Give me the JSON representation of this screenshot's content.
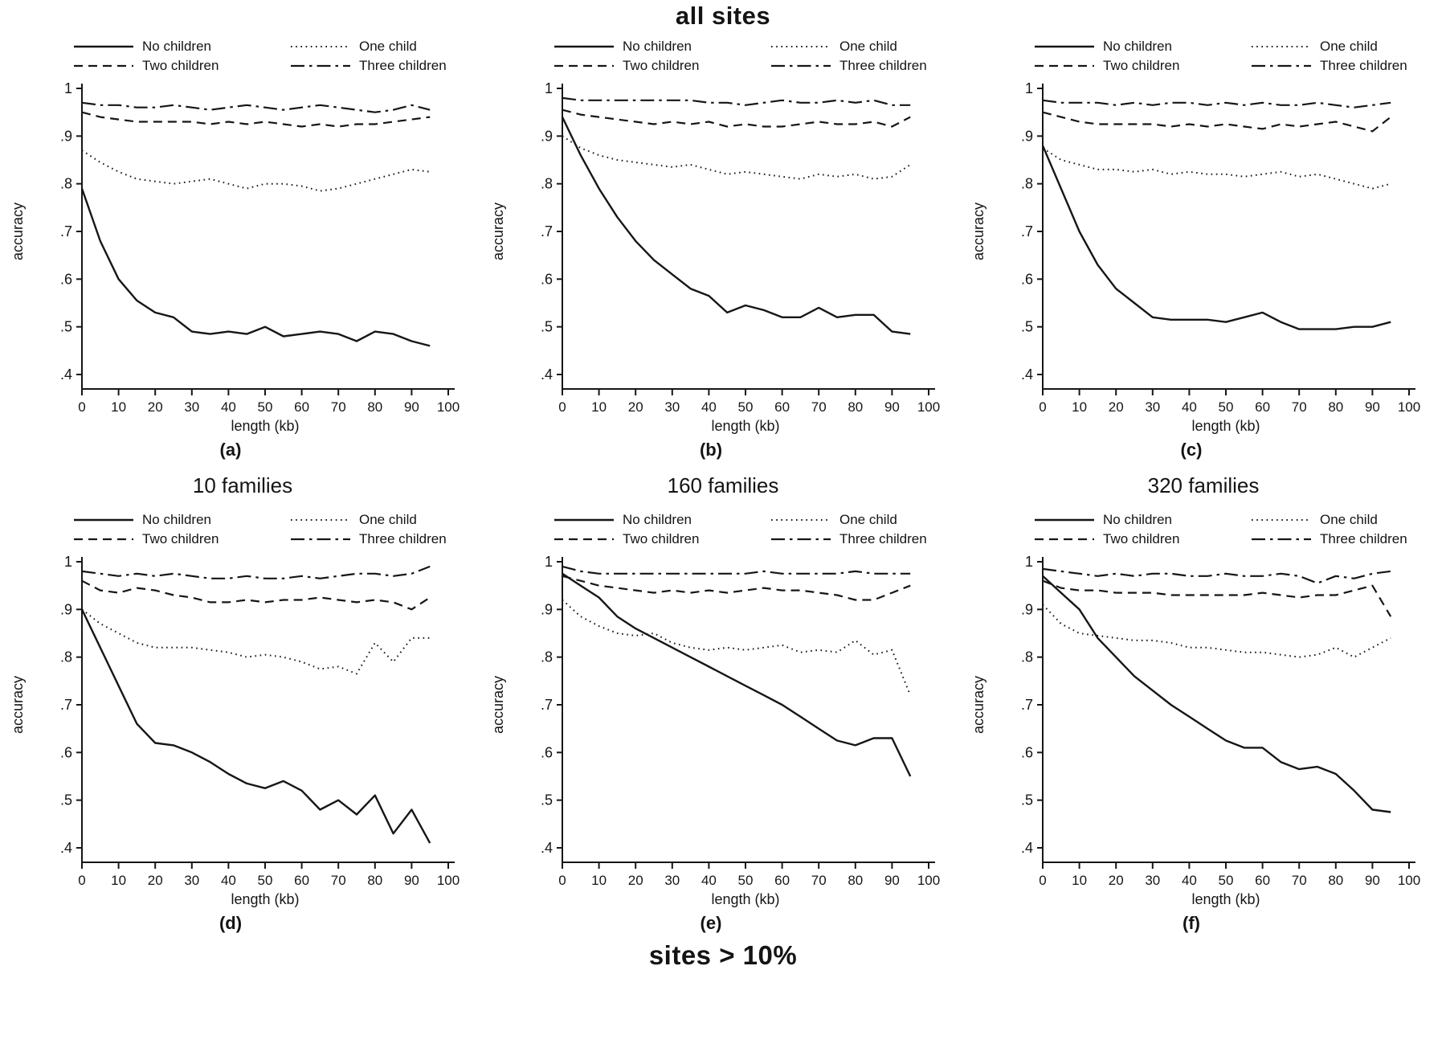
{
  "figure": {
    "top_title": "all sites",
    "bottom_title": "sites > 10%"
  },
  "column_labels": [
    "10 families",
    "160 families",
    "320 families"
  ],
  "legend": {
    "items": [
      {
        "label": "No children",
        "style": "solid"
      },
      {
        "label": "One child",
        "style": "dotted"
      },
      {
        "label": "Two children",
        "style": "dashed"
      },
      {
        "label": "Three children",
        "style": "dashdot"
      }
    ]
  },
  "axes": {
    "xlabel": "length (kb)",
    "ylabel": "accuracy",
    "xlim": [
      0,
      100
    ],
    "ylim": [
      0.4,
      1.0
    ],
    "xticks": [
      0,
      10,
      20,
      30,
      40,
      50,
      60,
      70,
      80,
      90,
      100
    ],
    "ytick_labels": [
      "1",
      ".9",
      ".8",
      ".7",
      ".6",
      ".5",
      ".4"
    ],
    "yticks": [
      1.0,
      0.9,
      0.8,
      0.7,
      0.6,
      0.5,
      0.4
    ],
    "grid": false,
    "legend_position": "above plot, two columns"
  },
  "chart_data": [
    {
      "id": "a",
      "caption": "(a)",
      "type": "line",
      "group": "all sites",
      "families": "10 families",
      "x": [
        0,
        5,
        10,
        15,
        20,
        25,
        30,
        35,
        40,
        45,
        50,
        55,
        60,
        65,
        70,
        75,
        80,
        85,
        90,
        95
      ],
      "series": [
        {
          "name": "No children",
          "style": "solid",
          "values": [
            0.79,
            0.68,
            0.6,
            0.555,
            0.53,
            0.52,
            0.49,
            0.485,
            0.49,
            0.485,
            0.5,
            0.48,
            0.485,
            0.49,
            0.485,
            0.47,
            0.49,
            0.485,
            0.47,
            0.46
          ]
        },
        {
          "name": "One child",
          "style": "dotted",
          "values": [
            0.87,
            0.845,
            0.825,
            0.81,
            0.805,
            0.8,
            0.805,
            0.81,
            0.8,
            0.79,
            0.8,
            0.8,
            0.795,
            0.785,
            0.79,
            0.8,
            0.81,
            0.82,
            0.83,
            0.825
          ]
        },
        {
          "name": "Two children",
          "style": "dashed",
          "values": [
            0.95,
            0.94,
            0.935,
            0.93,
            0.93,
            0.93,
            0.93,
            0.925,
            0.93,
            0.925,
            0.93,
            0.925,
            0.92,
            0.925,
            0.92,
            0.925,
            0.925,
            0.93,
            0.935,
            0.94
          ]
        },
        {
          "name": "Three children",
          "style": "dashdot",
          "values": [
            0.97,
            0.965,
            0.965,
            0.96,
            0.96,
            0.965,
            0.96,
            0.955,
            0.96,
            0.965,
            0.96,
            0.955,
            0.96,
            0.965,
            0.96,
            0.955,
            0.95,
            0.955,
            0.965,
            0.955
          ]
        }
      ]
    },
    {
      "id": "b",
      "caption": "(b)",
      "type": "line",
      "group": "all sites",
      "families": "160 families",
      "x": [
        0,
        5,
        10,
        15,
        20,
        25,
        30,
        35,
        40,
        45,
        50,
        55,
        60,
        65,
        70,
        75,
        80,
        85,
        90,
        95
      ],
      "series": [
        {
          "name": "No children",
          "style": "solid",
          "values": [
            0.94,
            0.86,
            0.79,
            0.73,
            0.68,
            0.64,
            0.61,
            0.58,
            0.565,
            0.53,
            0.545,
            0.535,
            0.52,
            0.52,
            0.54,
            0.52,
            0.525,
            0.525,
            0.49,
            0.485
          ]
        },
        {
          "name": "One child",
          "style": "dotted",
          "values": [
            0.9,
            0.875,
            0.86,
            0.85,
            0.845,
            0.84,
            0.835,
            0.84,
            0.83,
            0.82,
            0.825,
            0.82,
            0.815,
            0.81,
            0.82,
            0.815,
            0.82,
            0.81,
            0.815,
            0.84
          ]
        },
        {
          "name": "Two children",
          "style": "dashed",
          "values": [
            0.955,
            0.945,
            0.94,
            0.935,
            0.93,
            0.925,
            0.93,
            0.925,
            0.93,
            0.92,
            0.925,
            0.92,
            0.92,
            0.925,
            0.93,
            0.925,
            0.925,
            0.93,
            0.92,
            0.94
          ]
        },
        {
          "name": "Three children",
          "style": "dashdot",
          "values": [
            0.98,
            0.975,
            0.975,
            0.975,
            0.975,
            0.975,
            0.975,
            0.975,
            0.97,
            0.97,
            0.965,
            0.97,
            0.975,
            0.97,
            0.97,
            0.975,
            0.97,
            0.975,
            0.965,
            0.965
          ]
        }
      ]
    },
    {
      "id": "c",
      "caption": "(c)",
      "type": "line",
      "group": "all sites",
      "families": "320 families",
      "x": [
        0,
        5,
        10,
        15,
        20,
        25,
        30,
        35,
        40,
        45,
        50,
        55,
        60,
        65,
        70,
        75,
        80,
        85,
        90,
        95
      ],
      "series": [
        {
          "name": "No children",
          "style": "solid",
          "values": [
            0.88,
            0.79,
            0.7,
            0.63,
            0.58,
            0.55,
            0.52,
            0.515,
            0.515,
            0.515,
            0.51,
            0.52,
            0.53,
            0.51,
            0.495,
            0.495,
            0.495,
            0.5,
            0.5,
            0.51
          ]
        },
        {
          "name": "One child",
          "style": "dotted",
          "values": [
            0.875,
            0.85,
            0.84,
            0.83,
            0.83,
            0.825,
            0.83,
            0.82,
            0.825,
            0.82,
            0.82,
            0.815,
            0.82,
            0.825,
            0.815,
            0.82,
            0.81,
            0.8,
            0.79,
            0.8
          ]
        },
        {
          "name": "Two children",
          "style": "dashed",
          "values": [
            0.95,
            0.94,
            0.93,
            0.925,
            0.925,
            0.925,
            0.925,
            0.92,
            0.925,
            0.92,
            0.925,
            0.92,
            0.915,
            0.925,
            0.92,
            0.925,
            0.93,
            0.92,
            0.91,
            0.94
          ]
        },
        {
          "name": "Three children",
          "style": "dashdot",
          "values": [
            0.975,
            0.97,
            0.97,
            0.97,
            0.965,
            0.97,
            0.965,
            0.97,
            0.97,
            0.965,
            0.97,
            0.965,
            0.97,
            0.965,
            0.965,
            0.97,
            0.965,
            0.96,
            0.965,
            0.97
          ]
        }
      ]
    },
    {
      "id": "d",
      "caption": "(d)",
      "type": "line",
      "group": "sites > 10%",
      "families": "10 families",
      "x": [
        0,
        5,
        10,
        15,
        20,
        25,
        30,
        35,
        40,
        45,
        50,
        55,
        60,
        65,
        70,
        75,
        80,
        85,
        90,
        95
      ],
      "series": [
        {
          "name": "No children",
          "style": "solid",
          "values": [
            0.9,
            0.82,
            0.74,
            0.66,
            0.62,
            0.615,
            0.6,
            0.58,
            0.555,
            0.535,
            0.525,
            0.54,
            0.52,
            0.48,
            0.5,
            0.47,
            0.51,
            0.43,
            0.48,
            0.41
          ]
        },
        {
          "name": "One child",
          "style": "dotted",
          "values": [
            0.9,
            0.87,
            0.85,
            0.83,
            0.82,
            0.82,
            0.82,
            0.815,
            0.81,
            0.8,
            0.805,
            0.8,
            0.79,
            0.775,
            0.78,
            0.765,
            0.83,
            0.79,
            0.84,
            0.84
          ]
        },
        {
          "name": "Two children",
          "style": "dashed",
          "values": [
            0.96,
            0.94,
            0.935,
            0.945,
            0.94,
            0.93,
            0.925,
            0.915,
            0.915,
            0.92,
            0.915,
            0.92,
            0.92,
            0.925,
            0.92,
            0.915,
            0.92,
            0.915,
            0.9,
            0.925
          ]
        },
        {
          "name": "Three children",
          "style": "dashdot",
          "values": [
            0.98,
            0.975,
            0.97,
            0.975,
            0.97,
            0.975,
            0.97,
            0.965,
            0.965,
            0.97,
            0.965,
            0.965,
            0.97,
            0.965,
            0.97,
            0.975,
            0.975,
            0.97,
            0.975,
            0.99
          ]
        }
      ]
    },
    {
      "id": "e",
      "caption": "(e)",
      "type": "line",
      "group": "sites > 10%",
      "families": "160 families",
      "x": [
        0,
        5,
        10,
        15,
        20,
        25,
        30,
        35,
        40,
        45,
        50,
        55,
        60,
        65,
        70,
        75,
        80,
        85,
        90,
        95
      ],
      "series": [
        {
          "name": "No children",
          "style": "solid",
          "values": [
            0.975,
            0.95,
            0.925,
            0.885,
            0.86,
            0.84,
            0.82,
            0.8,
            0.78,
            0.76,
            0.74,
            0.72,
            0.7,
            0.675,
            0.65,
            0.625,
            0.615,
            0.63,
            0.63,
            0.55
          ]
        },
        {
          "name": "One child",
          "style": "dotted",
          "values": [
            0.92,
            0.885,
            0.865,
            0.85,
            0.845,
            0.85,
            0.83,
            0.82,
            0.815,
            0.82,
            0.815,
            0.82,
            0.825,
            0.81,
            0.815,
            0.81,
            0.835,
            0.805,
            0.815,
            0.72
          ]
        },
        {
          "name": "Two children",
          "style": "dashed",
          "values": [
            0.97,
            0.96,
            0.95,
            0.945,
            0.94,
            0.935,
            0.94,
            0.935,
            0.94,
            0.935,
            0.94,
            0.945,
            0.94,
            0.94,
            0.935,
            0.93,
            0.92,
            0.92,
            0.935,
            0.95
          ]
        },
        {
          "name": "Three children",
          "style": "dashdot",
          "values": [
            0.99,
            0.98,
            0.975,
            0.975,
            0.975,
            0.975,
            0.975,
            0.975,
            0.975,
            0.975,
            0.975,
            0.98,
            0.975,
            0.975,
            0.975,
            0.975,
            0.98,
            0.975,
            0.975,
            0.975
          ]
        }
      ]
    },
    {
      "id": "f",
      "caption": "(f)",
      "type": "line",
      "group": "sites > 10%",
      "families": "320 families",
      "x": [
        0,
        5,
        10,
        15,
        20,
        25,
        30,
        35,
        40,
        45,
        50,
        55,
        60,
        65,
        70,
        75,
        80,
        85,
        90,
        95
      ],
      "series": [
        {
          "name": "No children",
          "style": "solid",
          "values": [
            0.97,
            0.935,
            0.9,
            0.84,
            0.8,
            0.76,
            0.73,
            0.7,
            0.675,
            0.65,
            0.625,
            0.61,
            0.61,
            0.58,
            0.565,
            0.57,
            0.555,
            0.52,
            0.48,
            0.475
          ]
        },
        {
          "name": "One child",
          "style": "dotted",
          "values": [
            0.91,
            0.87,
            0.85,
            0.845,
            0.84,
            0.835,
            0.835,
            0.83,
            0.82,
            0.82,
            0.815,
            0.81,
            0.81,
            0.805,
            0.8,
            0.805,
            0.82,
            0.8,
            0.82,
            0.84
          ]
        },
        {
          "name": "Two children",
          "style": "dashed",
          "values": [
            0.96,
            0.945,
            0.94,
            0.94,
            0.935,
            0.935,
            0.935,
            0.93,
            0.93,
            0.93,
            0.93,
            0.93,
            0.935,
            0.93,
            0.925,
            0.93,
            0.93,
            0.94,
            0.95,
            0.885
          ]
        },
        {
          "name": "Three children",
          "style": "dashdot",
          "values": [
            0.985,
            0.98,
            0.975,
            0.97,
            0.975,
            0.97,
            0.975,
            0.975,
            0.97,
            0.97,
            0.975,
            0.97,
            0.97,
            0.975,
            0.97,
            0.955,
            0.97,
            0.965,
            0.975,
            0.98
          ]
        }
      ]
    }
  ]
}
